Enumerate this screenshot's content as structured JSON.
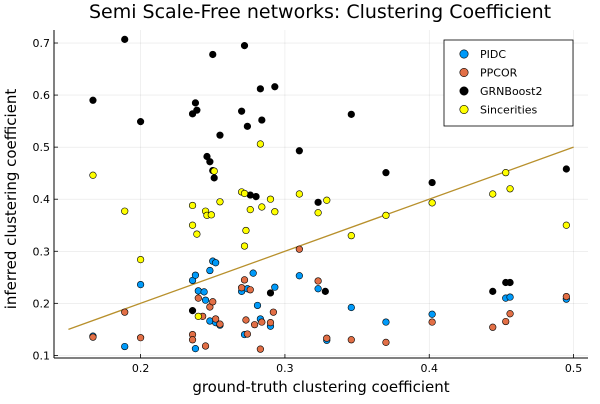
{
  "chart_data": {
    "type": "scatter",
    "title": "Semi Scale-Free networks: Clustering Coefficient",
    "xlabel": "ground-truth clustering coefficient",
    "ylabel": "inferred clustering coefficient",
    "xlim": [
      0.14,
      0.51
    ],
    "ylim": [
      0.095,
      0.725
    ],
    "xticks": [
      0.2,
      0.3,
      0.4,
      0.5
    ],
    "yticks": [
      0.1,
      0.2,
      0.3,
      0.4,
      0.5,
      0.6,
      0.7
    ],
    "grid": true,
    "legend_position": "top-right",
    "series": [
      {
        "name": "PIDC",
        "color": "#009af9",
        "points": [
          [
            0.167,
            0.137
          ],
          [
            0.189,
            0.117
          ],
          [
            0.2,
            0.236
          ],
          [
            0.236,
            0.244
          ],
          [
            0.238,
            0.254
          ],
          [
            0.24,
            0.224
          ],
          [
            0.244,
            0.222
          ],
          [
            0.248,
            0.263
          ],
          [
            0.25,
            0.281
          ],
          [
            0.252,
            0.278
          ],
          [
            0.238,
            0.113
          ],
          [
            0.245,
            0.206
          ],
          [
            0.248,
            0.166
          ],
          [
            0.252,
            0.163
          ],
          [
            0.255,
            0.158
          ],
          [
            0.27,
            0.223
          ],
          [
            0.272,
            0.14
          ],
          [
            0.274,
            0.228
          ],
          [
            0.278,
            0.258
          ],
          [
            0.281,
            0.196
          ],
          [
            0.283,
            0.17
          ],
          [
            0.29,
            0.156
          ],
          [
            0.293,
            0.231
          ],
          [
            0.31,
            0.253
          ],
          [
            0.323,
            0.228
          ],
          [
            0.329,
            0.129
          ],
          [
            0.346,
            0.192
          ],
          [
            0.37,
            0.164
          ],
          [
            0.402,
            0.179
          ],
          [
            0.453,
            0.21
          ],
          [
            0.456,
            0.212
          ],
          [
            0.495,
            0.208
          ]
        ]
      },
      {
        "name": "PPCOR",
        "color": "#e26f46",
        "points": [
          [
            0.167,
            0.135
          ],
          [
            0.189,
            0.183
          ],
          [
            0.2,
            0.134
          ],
          [
            0.236,
            0.14
          ],
          [
            0.236,
            0.13
          ],
          [
            0.24,
            0.21
          ],
          [
            0.243,
            0.175
          ],
          [
            0.245,
            0.118
          ],
          [
            0.248,
            0.193
          ],
          [
            0.25,
            0.203
          ],
          [
            0.252,
            0.17
          ],
          [
            0.255,
            0.16
          ],
          [
            0.27,
            0.23
          ],
          [
            0.272,
            0.245
          ],
          [
            0.273,
            0.168
          ],
          [
            0.274,
            0.141
          ],
          [
            0.276,
            0.226
          ],
          [
            0.279,
            0.159
          ],
          [
            0.283,
            0.112
          ],
          [
            0.284,
            0.164
          ],
          [
            0.29,
            0.163
          ],
          [
            0.292,
            0.183
          ],
          [
            0.31,
            0.304
          ],
          [
            0.323,
            0.243
          ],
          [
            0.329,
            0.133
          ],
          [
            0.346,
            0.13
          ],
          [
            0.37,
            0.125
          ],
          [
            0.402,
            0.164
          ],
          [
            0.444,
            0.154
          ],
          [
            0.453,
            0.165
          ],
          [
            0.456,
            0.18
          ],
          [
            0.495,
            0.213
          ]
        ]
      },
      {
        "name": "GRNBoost2",
        "color": "#000000",
        "points": [
          [
            0.167,
            0.59
          ],
          [
            0.189,
            0.707
          ],
          [
            0.2,
            0.549
          ],
          [
            0.236,
            0.564
          ],
          [
            0.238,
            0.585
          ],
          [
            0.239,
            0.571
          ],
          [
            0.236,
            0.186
          ],
          [
            0.246,
            0.482
          ],
          [
            0.248,
            0.472
          ],
          [
            0.25,
            0.455
          ],
          [
            0.251,
            0.441
          ],
          [
            0.25,
            0.678
          ],
          [
            0.255,
            0.523
          ],
          [
            0.27,
            0.569
          ],
          [
            0.272,
            0.695
          ],
          [
            0.274,
            0.54
          ],
          [
            0.276,
            0.408
          ],
          [
            0.28,
            0.405
          ],
          [
            0.283,
            0.612
          ],
          [
            0.284,
            0.552
          ],
          [
            0.29,
            0.22
          ],
          [
            0.293,
            0.616
          ],
          [
            0.31,
            0.493
          ],
          [
            0.323,
            0.394
          ],
          [
            0.328,
            0.223
          ],
          [
            0.346,
            0.563
          ],
          [
            0.37,
            0.451
          ],
          [
            0.402,
            0.432
          ],
          [
            0.444,
            0.223
          ],
          [
            0.453,
            0.24
          ],
          [
            0.456,
            0.24
          ],
          [
            0.495,
            0.458
          ]
        ]
      },
      {
        "name": "Sincerities",
        "color": "#ffff00",
        "points": [
          [
            0.167,
            0.446
          ],
          [
            0.189,
            0.377
          ],
          [
            0.2,
            0.284
          ],
          [
            0.236,
            0.388
          ],
          [
            0.236,
            0.35
          ],
          [
            0.239,
            0.333
          ],
          [
            0.24,
            0.175
          ],
          [
            0.245,
            0.377
          ],
          [
            0.246,
            0.369
          ],
          [
            0.249,
            0.37
          ],
          [
            0.251,
            0.454
          ],
          [
            0.255,
            0.395
          ],
          [
            0.27,
            0.414
          ],
          [
            0.272,
            0.411
          ],
          [
            0.273,
            0.34
          ],
          [
            0.272,
            0.31
          ],
          [
            0.276,
            0.38
          ],
          [
            0.283,
            0.506
          ],
          [
            0.284,
            0.385
          ],
          [
            0.29,
            0.4
          ],
          [
            0.293,
            0.376
          ],
          [
            0.31,
            0.41
          ],
          [
            0.323,
            0.374
          ],
          [
            0.329,
            0.398
          ],
          [
            0.346,
            0.33
          ],
          [
            0.37,
            0.369
          ],
          [
            0.402,
            0.393
          ],
          [
            0.444,
            0.41
          ],
          [
            0.453,
            0.451
          ],
          [
            0.456,
            0.42
          ],
          [
            0.495,
            0.35
          ]
        ]
      }
    ],
    "reference_line": {
      "color": "#b8902c",
      "from": [
        0.15,
        0.15
      ],
      "to": [
        0.5,
        0.5
      ]
    }
  }
}
